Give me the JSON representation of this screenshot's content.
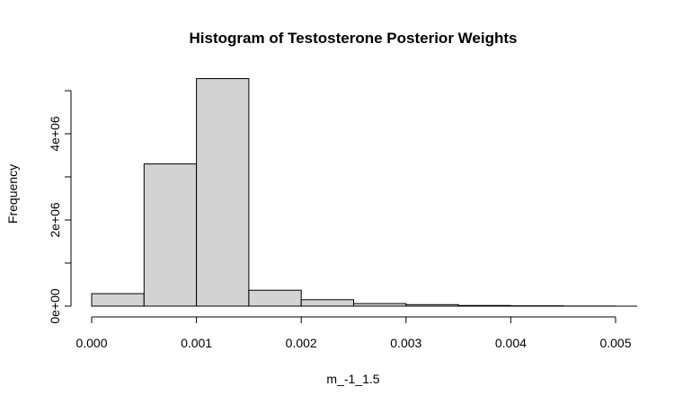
{
  "chart_data": {
    "type": "bar",
    "title": "Histogram of Testosterone Posterior Weights",
    "xlabel": "m_-1_1.5",
    "ylabel": "Frequency",
    "bins": [
      {
        "start": 0.0,
        "end": 0.0005,
        "count": 290000
      },
      {
        "start": 0.0005,
        "end": 0.001,
        "count": 3300000
      },
      {
        "start": 0.001,
        "end": 0.0015,
        "count": 5280000
      },
      {
        "start": 0.0015,
        "end": 0.002,
        "count": 370000
      },
      {
        "start": 0.002,
        "end": 0.0025,
        "count": 150000
      },
      {
        "start": 0.0025,
        "end": 0.003,
        "count": 60000
      },
      {
        "start": 0.003,
        "end": 0.0035,
        "count": 35000
      },
      {
        "start": 0.0035,
        "end": 0.004,
        "count": 15000
      },
      {
        "start": 0.004,
        "end": 0.0045,
        "count": 8000
      },
      {
        "start": 0.0045,
        "end": 0.005,
        "count": 3000
      }
    ],
    "x_ticks": [
      {
        "value": 0.0,
        "label": "0.000"
      },
      {
        "value": 0.001,
        "label": "0.001"
      },
      {
        "value": 0.002,
        "label": "0.002"
      },
      {
        "value": 0.003,
        "label": "0.003"
      },
      {
        "value": 0.004,
        "label": "0.004"
      },
      {
        "value": 0.005,
        "label": "0.005"
      }
    ],
    "y_ticks": [
      {
        "value": 0,
        "label": "0e+00"
      },
      {
        "value": 1000000,
        "label": ""
      },
      {
        "value": 2000000,
        "label": "2e+06"
      },
      {
        "value": 3000000,
        "label": ""
      },
      {
        "value": 4000000,
        "label": "4e+06"
      },
      {
        "value": 5000000,
        "label": ""
      }
    ],
    "xlim": [
      0.0,
      0.0052
    ],
    "ylim": [
      0,
      5280000
    ],
    "grid": false,
    "colors": {
      "bar_fill": "#d3d3d3",
      "bar_stroke": "#000000"
    }
  }
}
